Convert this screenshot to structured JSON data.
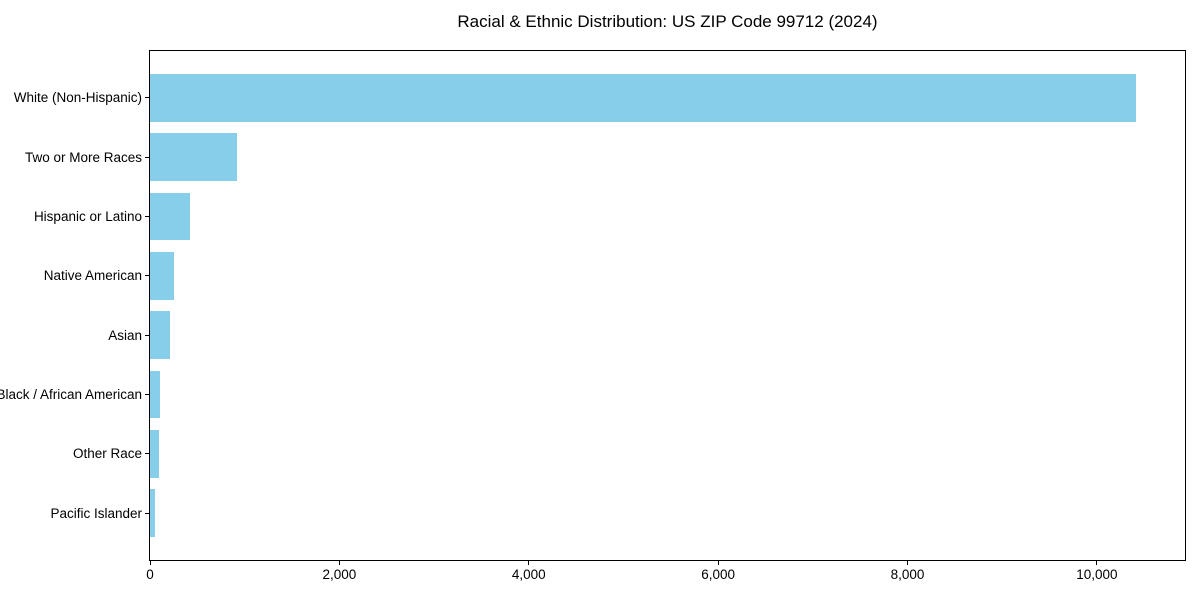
{
  "title": "Racial & Ethnic Distribution: US ZIP Code 99712 (2024)",
  "chart_data": {
    "type": "bar",
    "orientation": "horizontal",
    "title": "Racial & Ethnic Distribution: US ZIP Code 99712 (2024)",
    "categories": [
      "White (Non-Hispanic)",
      "Two or More Races",
      "Hispanic or Latino",
      "Native American",
      "Asian",
      "Black / African American",
      "Other Race",
      "Pacific Islander"
    ],
    "values": [
      10408,
      920,
      420,
      255,
      209,
      103,
      97,
      52
    ],
    "xlabel": "",
    "ylabel": "",
    "xlim": [
      0,
      10930
    ],
    "xticks": [
      {
        "value": 0,
        "label": "0"
      },
      {
        "value": 2000,
        "label": "2,000"
      },
      {
        "value": 4000,
        "label": "4,000"
      },
      {
        "value": 6000,
        "label": "6,000"
      },
      {
        "value": 8000,
        "label": "8,000"
      },
      {
        "value": 10000,
        "label": "10,000"
      }
    ],
    "grid": false,
    "legend": null,
    "bar_color": "#87CEEB",
    "spine_color": "#000000",
    "background_color": "#ffffff"
  }
}
